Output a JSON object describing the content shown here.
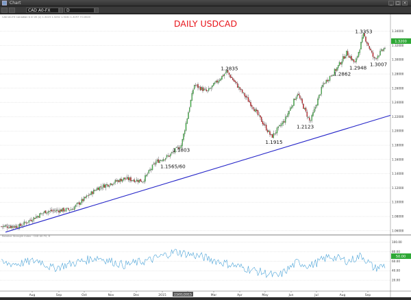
{
  "window": {
    "title": "Chart",
    "controls": [
      "_",
      "□",
      "×"
    ]
  },
  "toolbar": {
    "symbol": "CAD A0-FX",
    "interval": "D"
  },
  "chart": {
    "info_line": "CAD A0-FX  Canadian $ in US (c)  1.3223  1.3232  1.3161  1.3197  +0.0020",
    "title": "DAILY USDCAD",
    "watermark": "© eSignal, 2015",
    "indicator_label": "Relative Strength Index : CAD A0-FX, D",
    "date_box": "23/01/2015",
    "price_box": "1.3200",
    "rsi_box": "50.00"
  },
  "colors": {
    "title": "#e8151b",
    "up": "#41b646",
    "down": "#c7181e",
    "trendline": "#2424c8",
    "rsi": "#4aa3d8",
    "box": "#2ea836"
  },
  "chart_data": [
    {
      "type": "candlestick",
      "title": "DAILY USDCAD",
      "y_ticks": [
        "1.06000",
        "1.08000",
        "1.10000",
        "1.12000",
        "1.14000",
        "1.16000",
        "1.18000",
        "1.20000",
        "1.22000",
        "1.24000",
        "1.26000",
        "1.28000",
        "1.30000",
        "1.32000",
        "1.34000"
      ],
      "x_ticks": [
        "Aug",
        "Sep",
        "Oct",
        "Nov",
        "Dec",
        "2015",
        "Feb",
        "Mar",
        "Apr",
        "May",
        "Jun",
        "Jul",
        "Aug",
        "Sep"
      ],
      "ylim": [
        1.056,
        1.356
      ],
      "annotations": [
        "1.1565/60",
        "1.1803",
        "1.2835",
        "1.1915",
        "1.2123",
        "1.2862",
        "1.2948",
        "1.3353",
        "1.3007"
      ],
      "waypoints": [
        {
          "t": "Jul 2014",
          "price": 1.066
        },
        {
          "t": "Aug 2014",
          "price": 1.087
        },
        {
          "t": "Sep 2014",
          "price": 1.09
        },
        {
          "t": "Oct 2014",
          "price": 1.12
        },
        {
          "t": "Nov 2014",
          "price": 1.133
        },
        {
          "t": "Dec 2014",
          "price": 1.13
        },
        {
          "t": "Dec 2014",
          "price": 1.1565
        },
        {
          "t": "Jan 2015",
          "price": 1.165
        },
        {
          "t": "Jan 2015",
          "price": 1.1803
        },
        {
          "t": "Feb 2015",
          "price": 1.265
        },
        {
          "t": "Feb 2015",
          "price": 1.255
        },
        {
          "t": "Mar 2015",
          "price": 1.2835
        },
        {
          "t": "Apr 2015",
          "price": 1.235
        },
        {
          "t": "May 2015",
          "price": 1.1915
        },
        {
          "t": "May 2015",
          "price": 1.215
        },
        {
          "t": "Jun 2015",
          "price": 1.253
        },
        {
          "t": "Jun 2015",
          "price": 1.2123
        },
        {
          "t": "Jul 2015",
          "price": 1.265
        },
        {
          "t": "Jul 2015",
          "price": 1.2862
        },
        {
          "t": "Aug 2015",
          "price": 1.31
        },
        {
          "t": "Aug 2015",
          "price": 1.2948
        },
        {
          "t": "Aug 2015",
          "price": 1.3353
        },
        {
          "t": "Sep 2015",
          "price": 1.3007
        },
        {
          "t": "Sep 2015",
          "price": 1.32
        }
      ],
      "trendline": [
        {
          "t": "Jul 2014",
          "price": 1.058
        },
        {
          "t": "Sep 2015",
          "price": 1.222
        }
      ]
    },
    {
      "type": "line",
      "title": "Relative Strength Index",
      "y_ticks": [
        "20.00",
        "40.00",
        "60.00",
        "80.00",
        "100.00"
      ],
      "ylim": [
        0,
        108
      ],
      "waypoints": [
        {
          "t": "Jul 2014",
          "rsi": 55
        },
        {
          "t": "Aug 2014",
          "rsi": 62
        },
        {
          "t": "Aug 2014",
          "rsi": 45
        },
        {
          "t": "Oct 2014",
          "rsi": 68
        },
        {
          "t": "Nov 2014",
          "rsi": 52
        },
        {
          "t": "Dec 2014",
          "rsi": 62
        },
        {
          "t": "Jan 2015",
          "rsi": 80
        },
        {
          "t": "Feb 2015",
          "rsi": 70
        },
        {
          "t": "Mar 2015",
          "rsi": 55
        },
        {
          "t": "May 2015",
          "rsi": 28
        },
        {
          "t": "Jun 2015",
          "rsi": 58
        },
        {
          "t": "Jun 2015",
          "rsi": 50
        },
        {
          "t": "Jul 2015",
          "rsi": 70
        },
        {
          "t": "Aug 2015",
          "rsi": 60
        },
        {
          "t": "Aug 2015",
          "rsi": 72
        },
        {
          "t": "Sep 2015",
          "rsi": 45
        },
        {
          "t": "Sep 2015",
          "rsi": 52
        }
      ]
    }
  ]
}
